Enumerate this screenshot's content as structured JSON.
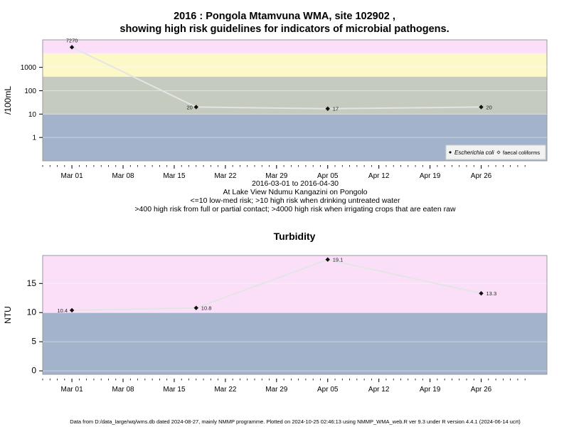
{
  "header": {
    "title_line1": "2016 : Pongola Mtamvuna WMA, site 102902 ,",
    "title_line2": "showing high risk guidelines for indicators of microbial pathogens."
  },
  "notes": {
    "line1": "2016-03-01 to 2016-04-30",
    "line2": "At Lake View Ndumu Kangazini on Pongolo",
    "line3": "<=10 low-med risk; >10 high risk when drinking untreated water",
    "line4": ">400 high risk from full or partial contact; >4000 high risk when irrigating crops that are eaten raw"
  },
  "footer": {
    "text": "Data from D:/data_large/wq/wms.db dated 2024-08-27, mainly NMMP programme. Plotted on 2024-10-25 02:46:13 using NMMP_WMA_web.R ver 9.3 under R version 4.4.1 (2024-06-14 ucrt)"
  },
  "colors": {
    "band_blue": "#a3b3cb",
    "band_grey": "#c6cbc0",
    "band_yellow": "#fdf8c8",
    "band_pink": "#fbdff9",
    "line": "#e4e4e4",
    "point": "#111111"
  },
  "chart_data": [
    {
      "type": "line",
      "title": "",
      "ylabel": "/100mL",
      "xlabel": "",
      "y_scale": "log10",
      "ylim": [
        0.1,
        15000
      ],
      "xlim": [
        "2016-02-26",
        "2016-05-05"
      ],
      "y_ticks": [
        1,
        10,
        100,
        1000
      ],
      "y_tick_labels": [
        "1",
        "10",
        "100",
        "1000"
      ],
      "x_ticks": [
        "2016-03-01",
        "2016-03-08",
        "2016-03-15",
        "2016-03-22",
        "2016-03-29",
        "2016-04-05",
        "2016-04-12",
        "2016-04-19",
        "2016-04-26"
      ],
      "x_tick_labels": [
        "Mar 01",
        "Mar 08",
        "Mar 15",
        "Mar 22",
        "Mar 29",
        "Apr 05",
        "Apr 12",
        "Apr 19",
        "Apr 26"
      ],
      "risk_bands": [
        {
          "from": 0.1,
          "to": 10,
          "color": "#a3b3cb"
        },
        {
          "from": 10,
          "to": 400,
          "color": "#c6cbc0"
        },
        {
          "from": 400,
          "to": 4000,
          "color": "#fdf8c8"
        },
        {
          "from": 4000,
          "to": 15000,
          "color": "#fbdff9"
        }
      ],
      "series": [
        {
          "name": "Escherichia coli",
          "x": [
            "2016-03-01",
            "2016-03-18",
            "2016-04-05",
            "2016-04-26"
          ],
          "values": [
            7270,
            20,
            17,
            20
          ],
          "labels": [
            "7270",
            "20",
            "17",
            "20"
          ]
        }
      ],
      "legend": {
        "position": "bottom-right",
        "entries": [
          "Escherichia coli",
          "faecal coliforms"
        ]
      }
    },
    {
      "type": "line",
      "title": "Turbidity",
      "ylabel": "NTU",
      "xlabel": "",
      "ylim": [
        -0.6,
        19.8
      ],
      "xlim": [
        "2016-02-26",
        "2016-05-05"
      ],
      "y_ticks": [
        0,
        5,
        10,
        15
      ],
      "y_tick_labels": [
        "0",
        "5",
        "10",
        "15"
      ],
      "x_ticks": [
        "2016-03-01",
        "2016-03-08",
        "2016-03-15",
        "2016-03-22",
        "2016-03-29",
        "2016-04-05",
        "2016-04-12",
        "2016-04-19",
        "2016-04-26"
      ],
      "x_tick_labels": [
        "Mar 01",
        "Mar 08",
        "Mar 15",
        "Mar 22",
        "Mar 29",
        "Apr 05",
        "Apr 12",
        "Apr 19",
        "Apr 26"
      ],
      "risk_bands": [
        {
          "from": -0.6,
          "to": 10,
          "color": "#a3b3cb"
        },
        {
          "from": 10,
          "to": 19.8,
          "color": "#fbdff9"
        }
      ],
      "series": [
        {
          "x": [
            "2016-03-01",
            "2016-03-18",
            "2016-04-05",
            "2016-04-26"
          ],
          "values": [
            10.4,
            10.8,
            19.1,
            13.3
          ],
          "labels": [
            "10.4",
            "10.8",
            "19.1",
            "13.3"
          ]
        }
      ]
    }
  ]
}
